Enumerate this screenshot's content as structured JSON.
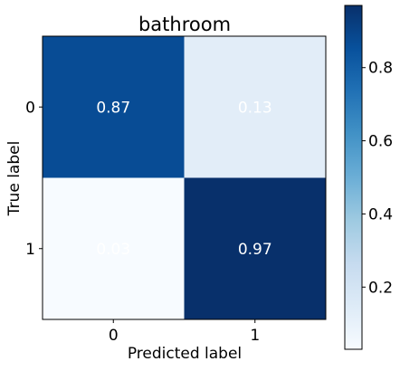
{
  "chart_data": {
    "type": "heatmap",
    "title": "bathroom",
    "xlabel": "Predicted label",
    "ylabel": "True label",
    "x_categories": [
      "0",
      "1"
    ],
    "y_categories": [
      "0",
      "1"
    ],
    "values": [
      [
        0.87,
        0.13
      ],
      [
        0.03,
        0.97
      ]
    ],
    "value_labels": [
      [
        "0.87",
        "0.13"
      ],
      [
        "0.03",
        "0.97"
      ]
    ],
    "colormap": "Blues",
    "colorbar": {
      "range": [
        0.03,
        0.97
      ],
      "ticks": [
        0.2,
        0.4,
        0.6,
        0.8
      ],
      "tick_labels": [
        "0.2",
        "0.4",
        "0.6",
        "0.8"
      ]
    },
    "grid": false
  }
}
